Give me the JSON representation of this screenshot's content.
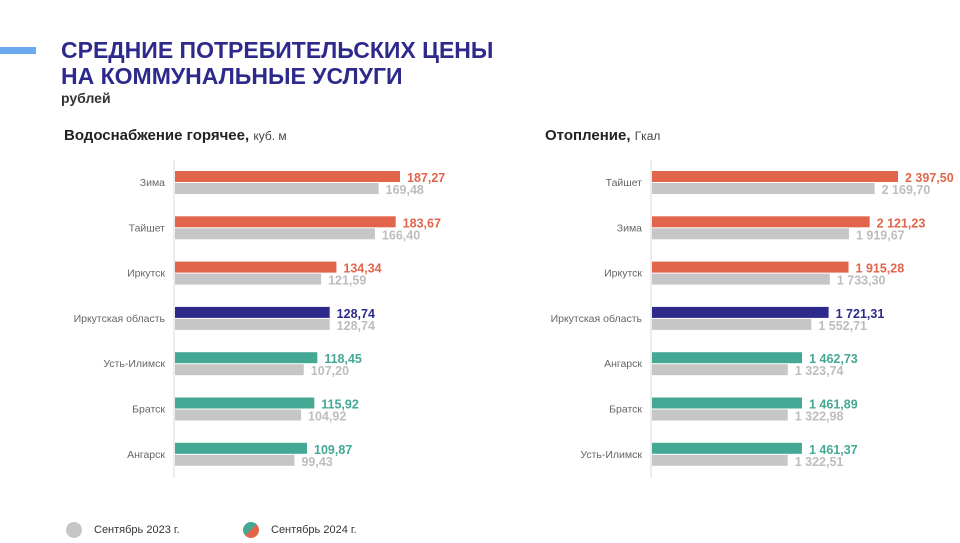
{
  "header": {
    "title_line1": "СРЕДНИЕ ПОТРЕБИТЕЛЬСКИХ ЦЕНЫ",
    "title_line2": "НА КОММУНАЛЬНЫЕ УСЛУГИ",
    "subtitle": "рублей"
  },
  "colors": {
    "accent": "#6aa8f0",
    "title": "#2e2a8c",
    "high": "#e0654a",
    "region": "#2e2a8c",
    "low": "#45a894",
    "prev": "#c6c6c6",
    "prev_label": "#bdbdbd"
  },
  "legend": {
    "prev_label": "Сентябрь 2023 г.",
    "curr_label": "Сентябрь 2024 г."
  },
  "chart_data": [
    {
      "type": "bar",
      "orientation": "horizontal",
      "title": "Водоснабжение горячее,",
      "unit": "куб. м",
      "xlim": [
        0,
        200
      ],
      "categories": [
        "Зима",
        "Тайшет",
        "Иркутск",
        "Иркутская область",
        "Усть-Илимск",
        "Братск",
        "Ангарск"
      ],
      "groups": [
        "high",
        "high",
        "high",
        "region",
        "low",
        "low",
        "low"
      ],
      "series": [
        {
          "name": "Сентябрь 2024 г.",
          "values": [
            187.27,
            183.67,
            134.34,
            128.74,
            118.45,
            115.92,
            109.87
          ],
          "labels": [
            "187,27",
            "183,67",
            "134,34",
            "128,74",
            "118,45",
            "115,92",
            "109,87"
          ]
        },
        {
          "name": "Сентябрь 2023 г.",
          "values": [
            169.48,
            166.4,
            121.59,
            128.74,
            107.2,
            104.92,
            99.43
          ],
          "labels": [
            "169,48",
            "166,40",
            "121,59",
            "128,74",
            "107,20",
            "104,92",
            "99,43"
          ]
        }
      ]
    },
    {
      "type": "bar",
      "orientation": "horizontal",
      "title": "Отопление,",
      "unit": "Гкал",
      "xlim": [
        0,
        2500
      ],
      "categories": [
        "Тайшет",
        "Зима",
        "Иркутск",
        "Иркутская область",
        "Ангарск",
        "Братск",
        "Усть-Илимск"
      ],
      "groups": [
        "high",
        "high",
        "high",
        "region",
        "low",
        "low",
        "low"
      ],
      "series": [
        {
          "name": "Сентябрь 2024 г.",
          "values": [
            2397.5,
            2121.23,
            1915.28,
            1721.31,
            1462.73,
            1461.89,
            1461.37
          ],
          "labels": [
            "2 397,50",
            "2 121,23",
            "1 915,28",
            "1 721,31",
            "1 462,73",
            "1 461,89",
            "1 461,37"
          ]
        },
        {
          "name": "Сентябрь 2023 г.",
          "values": [
            2169.7,
            1919.67,
            1733.3,
            1552.71,
            1323.74,
            1322.98,
            1322.51
          ],
          "labels": [
            "2 169,70",
            "1 919,67",
            "1 733,30",
            "1 552,71",
            "1 323,74",
            "1 322,98",
            "1 322,51"
          ]
        }
      ]
    }
  ]
}
